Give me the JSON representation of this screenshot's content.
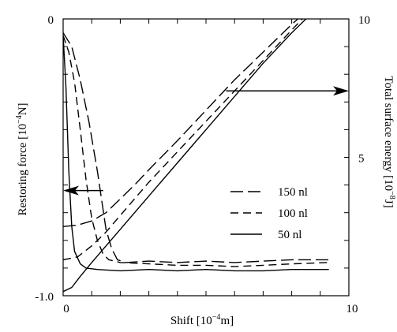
{
  "chart_data": {
    "type": "line",
    "xlabel_prefix": "Shift [10",
    "xlabel_exp": "−4",
    "xlabel_suffix": "m]",
    "ylabel_left_prefix": "Restoring  force  [10",
    "ylabel_left_exp": "−4",
    "ylabel_left_suffix": "N]",
    "ylabel_right_prefix": "Total surface energy  [10",
    "ylabel_right_exp": "−8",
    "ylabel_right_suffix": "J]",
    "xlim": [
      0,
      10
    ],
    "ylim_left": [
      -1.0,
      0
    ],
    "ylim_right": [
      0,
      10
    ],
    "x_ticks": [
      {
        "value": 0,
        "label": "0"
      },
      {
        "value": 10,
        "label": "10"
      }
    ],
    "y_left_ticks": [
      {
        "value": 0,
        "label": "0"
      },
      {
        "value": -1.0,
        "label": "-1.0"
      }
    ],
    "y_right_ticks": [
      {
        "value": 10,
        "label": "10"
      },
      {
        "value": 5,
        "label": "5"
      }
    ],
    "legend_position": "center-right",
    "legend": [
      {
        "label": "150 nl",
        "style": "long-dash"
      },
      {
        "label": "100 nl",
        "style": "dash"
      },
      {
        "label": "50 nl",
        "style": "solid"
      }
    ],
    "series": [
      {
        "name": "150 nl",
        "style": "long-dash",
        "force": [
          [
            0,
            -0.05
          ],
          [
            0.3,
            -0.1
          ],
          [
            0.6,
            -0.22
          ],
          [
            0.9,
            -0.37
          ],
          [
            1.2,
            -0.55
          ],
          [
            1.5,
            -0.76
          ],
          [
            1.7,
            -0.83
          ],
          [
            1.9,
            -0.87
          ],
          [
            2.2,
            -0.88
          ],
          [
            3.0,
            -0.875
          ],
          [
            4.0,
            -0.88
          ],
          [
            5.0,
            -0.875
          ],
          [
            6.0,
            -0.88
          ],
          [
            7.0,
            -0.875
          ],
          [
            8.0,
            -0.87
          ],
          [
            9.3,
            -0.87
          ]
        ],
        "energy": [
          [
            0,
            2.5
          ],
          [
            0.5,
            2.55
          ],
          [
            1.0,
            2.7
          ],
          [
            1.5,
            3.0
          ],
          [
            2.0,
            3.5
          ],
          [
            2.5,
            4.0
          ],
          [
            3.0,
            4.55
          ],
          [
            4.0,
            5.6
          ],
          [
            5.0,
            6.7
          ],
          [
            6.0,
            7.8
          ],
          [
            7.0,
            8.8
          ],
          [
            8.0,
            9.8
          ],
          [
            9.3,
            11.0
          ]
        ]
      },
      {
        "name": "100 nl",
        "style": "dash",
        "force": [
          [
            0,
            -0.06
          ],
          [
            0.2,
            -0.12
          ],
          [
            0.4,
            -0.23
          ],
          [
            0.6,
            -0.4
          ],
          [
            0.8,
            -0.58
          ],
          [
            1.0,
            -0.72
          ],
          [
            1.2,
            -0.8
          ],
          [
            1.4,
            -0.85
          ],
          [
            1.6,
            -0.87
          ],
          [
            2.0,
            -0.88
          ],
          [
            3.0,
            -0.885
          ],
          [
            4.0,
            -0.89
          ],
          [
            5.0,
            -0.89
          ],
          [
            6.0,
            -0.895
          ],
          [
            7.0,
            -0.89
          ],
          [
            8.0,
            -0.885
          ],
          [
            9.3,
            -0.88
          ]
        ],
        "energy": [
          [
            0,
            1.3
          ],
          [
            0.5,
            1.4
          ],
          [
            1.0,
            1.8
          ],
          [
            1.5,
            2.3
          ],
          [
            2.0,
            2.9
          ],
          [
            3.0,
            4.1
          ],
          [
            4.0,
            5.2
          ],
          [
            5.0,
            6.3
          ],
          [
            6.0,
            7.4
          ],
          [
            7.0,
            8.5
          ],
          [
            8.0,
            9.6
          ],
          [
            9.3,
            11.0
          ]
        ]
      },
      {
        "name": "50 nl",
        "style": "solid",
        "force": [
          [
            0,
            -0.06
          ],
          [
            0.1,
            -0.25
          ],
          [
            0.2,
            -0.55
          ],
          [
            0.3,
            -0.75
          ],
          [
            0.4,
            -0.84
          ],
          [
            0.6,
            -0.885
          ],
          [
            0.8,
            -0.9
          ],
          [
            1.2,
            -0.905
          ],
          [
            2.0,
            -0.91
          ],
          [
            3.0,
            -0.905
          ],
          [
            4.0,
            -0.91
          ],
          [
            5.0,
            -0.905
          ],
          [
            6.0,
            -0.91
          ],
          [
            7.0,
            -0.91
          ],
          [
            8.0,
            -0.905
          ],
          [
            9.3,
            -0.905
          ]
        ],
        "energy": [
          [
            0,
            0.15
          ],
          [
            0.3,
            0.3
          ],
          [
            0.6,
            0.7
          ],
          [
            1.0,
            1.2
          ],
          [
            2.0,
            2.4
          ],
          [
            3.0,
            3.6
          ],
          [
            4.0,
            4.8
          ],
          [
            5.0,
            6.0
          ],
          [
            6.0,
            7.2
          ],
          [
            7.0,
            8.4
          ],
          [
            8.0,
            9.5
          ],
          [
            9.0,
            10.5
          ],
          [
            9.3,
            10.9
          ]
        ]
      }
    ],
    "annotations": [
      {
        "type": "arrow",
        "direction": "left",
        "axis": "left",
        "x_from": 1.4,
        "x_to": 0,
        "y": -0.62
      },
      {
        "type": "arrow",
        "direction": "right",
        "axis": "right",
        "x_from": 5.7,
        "x_to": 10,
        "y": 7.4
      }
    ]
  }
}
